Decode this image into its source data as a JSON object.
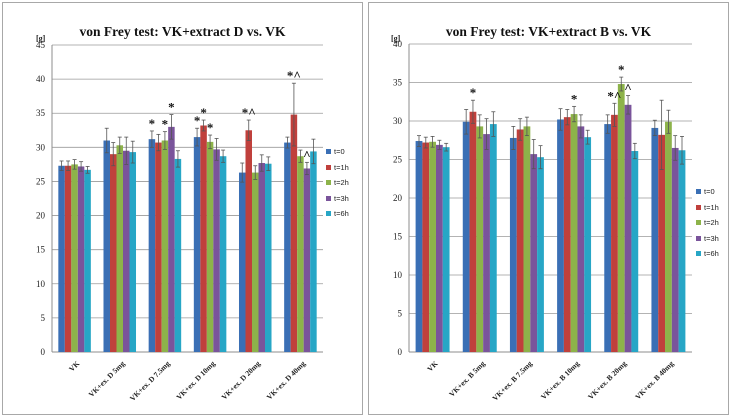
{
  "chart_data": [
    {
      "type": "bar",
      "title": "von Frey test: VK+extract D vs. VK",
      "ylabel": "[g]",
      "xlabel": "",
      "ylim": [
        0,
        45
      ],
      "yticks": [
        0,
        5,
        10,
        15,
        20,
        25,
        30,
        35,
        40,
        45
      ],
      "grid": true,
      "legend_position": "right",
      "categories": [
        "VK",
        "VK+ex. D 5mg",
        "VK+ex. D 7.5mg",
        "VK+ex. D 10mg",
        "VK+ex. D 20mg",
        "VK+ex. D 40mg"
      ],
      "series": [
        {
          "name": "t=0",
          "color": "#3a6fb5",
          "values": [
            27.3,
            31.0,
            31.2,
            31.5,
            26.3,
            30.7
          ],
          "errors": [
            0.7,
            1.8,
            1.2,
            1.3,
            1.4,
            0.8
          ]
        },
        {
          "name": "t=1h",
          "color": "#c0403c",
          "values": [
            27.3,
            29.0,
            30.7,
            33.2,
            32.5,
            34.8
          ],
          "errors": [
            0.7,
            1.7,
            1.2,
            0.8,
            1.5,
            4.6
          ]
        },
        {
          "name": "t=2h",
          "color": "#8db34a",
          "values": [
            27.5,
            30.3,
            31.0,
            30.8,
            26.3,
            28.7
          ],
          "errors": [
            0.7,
            1.2,
            1.3,
            1.0,
            1.0,
            0.9
          ]
        },
        {
          "name": "t=3h",
          "color": "#7a549b",
          "values": [
            27.2,
            29.5,
            33.0,
            29.7,
            27.7,
            26.9
          ],
          "errors": [
            0.7,
            2.0,
            1.8,
            1.6,
            1.2,
            0.9
          ]
        },
        {
          "name": "t=6h",
          "color": "#27a6c6",
          "values": [
            26.7,
            29.3,
            28.3,
            28.7,
            27.6,
            29.4
          ],
          "errors": [
            0.5,
            1.6,
            1.2,
            0.9,
            1.0,
            1.8
          ]
        }
      ],
      "annotations": [
        {
          "category": 2,
          "series": 0,
          "text": "*"
        },
        {
          "category": 2,
          "series": 2,
          "text": "*"
        },
        {
          "category": 2,
          "series": 3,
          "text": "*"
        },
        {
          "category": 3,
          "series": 0,
          "text": "*"
        },
        {
          "category": 3,
          "series": 1,
          "text": "*"
        },
        {
          "category": 3,
          "series": 2,
          "text": "*"
        },
        {
          "category": 4,
          "series": 1,
          "text": "*^"
        },
        {
          "category": 5,
          "series": 1,
          "text": "*^"
        },
        {
          "category": 5,
          "series": 3,
          "text": "^"
        }
      ]
    },
    {
      "type": "bar",
      "title": "von Frey test: VK+extract B vs. VK",
      "ylabel": "[g]",
      "xlabel": "",
      "ylim": [
        0,
        40
      ],
      "yticks": [
        0,
        5,
        10,
        15,
        20,
        25,
        30,
        35,
        40
      ],
      "grid": true,
      "legend_position": "right",
      "categories": [
        "VK",
        "VK+ex. B 5mg",
        "VK+ex. B 7.5mg",
        "VK+ex. B 10mg",
        "VK+ex. B 20mg",
        "VK+ex. B 40mg"
      ],
      "series": [
        {
          "name": "t=0",
          "color": "#3a6fb5",
          "values": [
            27.4,
            29.9,
            27.8,
            30.2,
            29.6,
            29.1
          ],
          "errors": [
            0.7,
            1.6,
            1.5,
            1.4,
            1.2,
            1.0
          ]
        },
        {
          "name": "t=1h",
          "color": "#c0403c",
          "values": [
            27.2,
            31.2,
            28.9,
            30.5,
            30.8,
            28.2
          ],
          "errors": [
            0.7,
            1.5,
            1.4,
            1.0,
            1.5,
            4.5
          ]
        },
        {
          "name": "t=2h",
          "color": "#8db34a",
          "values": [
            27.3,
            29.3,
            29.3,
            30.9,
            34.8,
            29.9
          ],
          "errors": [
            0.7,
            1.5,
            1.2,
            1.0,
            0.9,
            1.5
          ]
        },
        {
          "name": "t=3h",
          "color": "#7a549b",
          "values": [
            26.9,
            28.3,
            25.7,
            29.3,
            32.1,
            26.5
          ],
          "errors": [
            0.6,
            2.0,
            1.9,
            1.5,
            1.2,
            1.6
          ]
        },
        {
          "name": "t=6h",
          "color": "#27a6c6",
          "values": [
            26.6,
            29.6,
            25.3,
            27.9,
            26.1,
            26.2
          ],
          "errors": [
            0.5,
            1.6,
            1.5,
            0.9,
            1.0,
            1.8
          ]
        }
      ],
      "annotations": [
        {
          "category": 1,
          "series": 1,
          "text": "*"
        },
        {
          "category": 3,
          "series": 2,
          "text": "*"
        },
        {
          "category": 4,
          "series": 1,
          "text": "*^"
        },
        {
          "category": 4,
          "series": 2,
          "text": "*"
        },
        {
          "category": 4,
          "series": 3,
          "text": "^"
        }
      ]
    }
  ]
}
